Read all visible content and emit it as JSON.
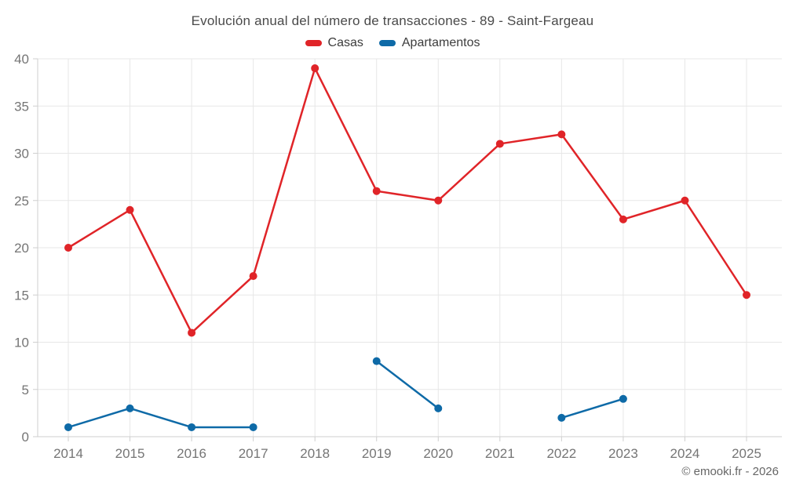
{
  "chart_data": {
    "type": "line",
    "title": "Evolución anual del número de transacciones - 89 - Saint-Fargeau",
    "categories": [
      "2014",
      "2015",
      "2016",
      "2017",
      "2018",
      "2019",
      "2020",
      "2021",
      "2022",
      "2023",
      "2024",
      "2025"
    ],
    "series": [
      {
        "name": "Casas",
        "color": "#e02428",
        "values": [
          20,
          24,
          11,
          17,
          39,
          26,
          25,
          31,
          32,
          23,
          25,
          15
        ]
      },
      {
        "name": "Apartamentos",
        "color": "#0e6aa7",
        "values": [
          1,
          3,
          1,
          1,
          null,
          8,
          3,
          null,
          2,
          4,
          null,
          null
        ]
      }
    ],
    "xlabel": "",
    "ylabel": "",
    "ylim": [
      0,
      40
    ],
    "yticks": [
      0,
      5,
      10,
      15,
      20,
      25,
      30,
      35,
      40
    ],
    "grid": true,
    "legend_position": "top"
  },
  "footer": {
    "credit": "© emooki.fr - 2026"
  },
  "colors": {
    "grid": "#e7e7e7",
    "axis": "#cfcfcf",
    "tick_label": "#757575"
  }
}
